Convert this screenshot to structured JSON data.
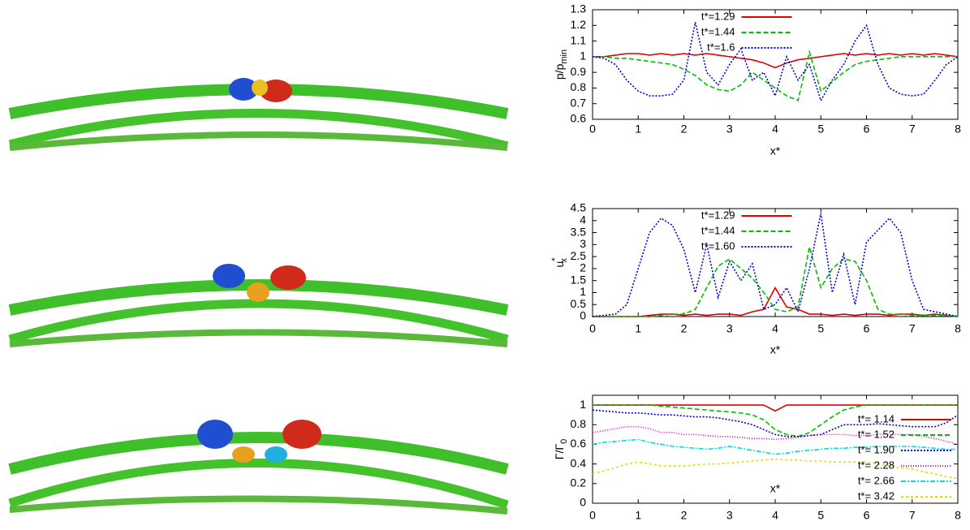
{
  "chart_data": [
    {
      "type": "line",
      "y_label": "p/p",
      "y_label_sub": "min",
      "x_label": "x*",
      "xlim": [
        0,
        8
      ],
      "xticks": [
        0,
        1,
        2,
        3,
        4,
        5,
        6,
        7,
        8
      ],
      "ylim": [
        0.6,
        1.3
      ],
      "yticks": [
        0.6,
        0.7,
        0.8,
        0.9,
        1,
        1.1,
        1.2,
        1.3
      ],
      "legend": "upper center",
      "x": [
        0,
        0.25,
        0.5,
        0.75,
        1,
        1.25,
        1.5,
        1.75,
        2,
        2.25,
        2.5,
        2.75,
        3,
        3.25,
        3.5,
        3.75,
        4,
        4.25,
        4.5,
        4.75,
        5,
        5.25,
        5.5,
        5.75,
        6,
        6.25,
        6.5,
        6.75,
        7,
        7.25,
        7.5,
        7.75,
        8
      ],
      "series": [
        {
          "name": "t*=1.29",
          "color": "#e00000",
          "dash": "solid",
          "values": [
            1,
            1,
            1.01,
            1.02,
            1.02,
            1.01,
            1.02,
            1.01,
            1.02,
            1.01,
            1.02,
            1.01,
            1,
            0.99,
            0.98,
            0.96,
            0.93,
            0.96,
            0.98,
            0.99,
            1,
            1.01,
            1.02,
            1.01,
            1.02,
            1.01,
            1.02,
            1.01,
            1.02,
            1.01,
            1.02,
            1.01,
            1
          ]
        },
        {
          "name": "t*=1.44",
          "color": "#00c000",
          "dash": "dashed",
          "values": [
            1,
            1,
            0.99,
            0.99,
            0.98,
            0.97,
            0.96,
            0.95,
            0.92,
            0.88,
            0.82,
            0.79,
            0.78,
            0.82,
            0.9,
            0.85,
            0.8,
            0.75,
            0.72,
            1.03,
            0.78,
            0.84,
            0.9,
            0.95,
            0.97,
            0.98,
            0.99,
            1,
            1,
            1,
            1,
            1,
            1
          ]
        },
        {
          "name": "t*=1.6",
          "color": "#0000e0",
          "dash": "dotted",
          "values": [
            1,
            0.99,
            0.95,
            0.85,
            0.78,
            0.75,
            0.75,
            0.76,
            0.85,
            1.22,
            0.9,
            0.82,
            0.95,
            1.05,
            0.85,
            0.9,
            0.75,
            1.0,
            0.85,
            0.95,
            0.72,
            0.85,
            0.95,
            1.1,
            1.2,
            0.95,
            0.8,
            0.76,
            0.75,
            0.76,
            0.85,
            0.95,
            1
          ]
        }
      ]
    },
    {
      "type": "line",
      "y_label": "u",
      "y_label_sub": "x",
      "y_label_sup": "*",
      "x_label": "x*",
      "xlim": [
        0,
        8
      ],
      "xticks": [
        0,
        1,
        2,
        3,
        4,
        5,
        6,
        7,
        8
      ],
      "ylim": [
        0,
        4.5
      ],
      "yticks": [
        0,
        0.5,
        1,
        1.5,
        2,
        2.5,
        3,
        3.5,
        4,
        4.5
      ],
      "legend": "upper center",
      "x": [
        0,
        0.25,
        0.5,
        0.75,
        1,
        1.25,
        1.5,
        1.75,
        2,
        2.25,
        2.5,
        2.75,
        3,
        3.25,
        3.5,
        3.75,
        4,
        4.25,
        4.5,
        4.75,
        5,
        5.25,
        5.5,
        5.75,
        6,
        6.25,
        6.5,
        6.75,
        7,
        7.25,
        7.5,
        7.75,
        8
      ],
      "series": [
        {
          "name": "t*=1.29",
          "color": "#e00000",
          "dash": "solid",
          "values": [
            0,
            0,
            0,
            0,
            0,
            0.05,
            0.1,
            0.1,
            0.05,
            0.1,
            0.05,
            0.1,
            0.1,
            0.05,
            0.2,
            0.3,
            1.2,
            0.4,
            0.3,
            0.1,
            0.1,
            0.05,
            0.1,
            0.05,
            0.1,
            0.1,
            0.05,
            0.1,
            0.1,
            0.05,
            0.1,
            0.05,
            0
          ]
        },
        {
          "name": "t*=1.44",
          "color": "#00c000",
          "dash": "dashed",
          "values": [
            0,
            0,
            0,
            0,
            0,
            0,
            0.05,
            0.1,
            0.1,
            0.3,
            1.2,
            2.1,
            2.4,
            2,
            1.6,
            1,
            0.3,
            0.2,
            0.4,
            2.9,
            1.2,
            2,
            2.4,
            2.3,
            1.5,
            0.3,
            0.1,
            0.1,
            0.05,
            0.05,
            0.05,
            0.05,
            0
          ]
        },
        {
          "name": "t*=1.60",
          "color": "#0000e0",
          "dash": "dotted",
          "values": [
            0,
            0.05,
            0.1,
            0.5,
            2,
            3.5,
            4.1,
            3.8,
            2.8,
            1,
            3,
            0.8,
            2.3,
            1.5,
            2.2,
            0.3,
            0.5,
            1.2,
            0.2,
            2,
            4.3,
            1,
            2.6,
            0.5,
            3.1,
            3.6,
            4.1,
            3.5,
            1.5,
            0.3,
            0.2,
            0.1,
            0
          ]
        }
      ]
    },
    {
      "type": "line",
      "y_label": "Γ/Γ",
      "y_label_sub": "0",
      "x_label": "x*",
      "xlim": [
        0,
        8
      ],
      "xticks": [
        0,
        1,
        2,
        3,
        4,
        5,
        6,
        7,
        8
      ],
      "ylim": [
        0,
        1.1
      ],
      "yticks": [
        0,
        0.2,
        0.4,
        0.6,
        0.8,
        1
      ],
      "legend": "lower right",
      "x": [
        0,
        0.25,
        0.5,
        0.75,
        1,
        1.25,
        1.5,
        1.75,
        2,
        2.25,
        2.5,
        2.75,
        3,
        3.25,
        3.5,
        3.75,
        4,
        4.25,
        4.5,
        4.75,
        5,
        5.25,
        5.5,
        5.75,
        6,
        6.25,
        6.5,
        6.75,
        7,
        7.25,
        7.5,
        7.75,
        8
      ],
      "series": [
        {
          "name": "t*= 1.14",
          "color": "#e00000",
          "dash": "solid",
          "values": [
            1,
            1,
            1,
            1,
            1,
            1,
            1,
            1,
            1,
            1,
            1,
            1,
            1,
            1,
            1,
            1,
            0.94,
            1,
            1,
            1,
            1,
            1,
            1,
            1,
            1,
            1,
            1,
            1,
            1,
            1,
            1,
            1,
            1
          ]
        },
        {
          "name": "t*= 1.52",
          "color": "#00c000",
          "dash": "dashed",
          "values": [
            1,
            1,
            1,
            1,
            1,
            1,
            0.99,
            0.98,
            0.97,
            0.96,
            0.95,
            0.94,
            0.93,
            0.92,
            0.9,
            0.85,
            0.75,
            0.7,
            0.68,
            0.72,
            0.8,
            0.88,
            0.95,
            0.98,
            1,
            1,
            1,
            1,
            1,
            1,
            1,
            1,
            1
          ]
        },
        {
          "name": "t*= 1.90",
          "color": "#0000e0",
          "dash": "dotted",
          "values": [
            0.95,
            0.94,
            0.93,
            0.92,
            0.92,
            0.91,
            0.9,
            0.9,
            0.89,
            0.88,
            0.88,
            0.87,
            0.85,
            0.83,
            0.8,
            0.75,
            0.7,
            0.68,
            0.68,
            0.69,
            0.7,
            0.75,
            0.8,
            0.8,
            0.8,
            0.81,
            0.8,
            0.79,
            0.78,
            0.78,
            0.78,
            0.82,
            0.9
          ]
        },
        {
          "name": "t*= 2.28",
          "color": "#e000e0",
          "dash": "dotted2",
          "values": [
            0.72,
            0.74,
            0.76,
            0.78,
            0.78,
            0.76,
            0.72,
            0.72,
            0.7,
            0.7,
            0.69,
            0.68,
            0.68,
            0.67,
            0.66,
            0.66,
            0.65,
            0.66,
            0.67,
            0.69,
            0.7,
            0.7,
            0.7,
            0.69,
            0.69,
            0.7,
            0.7,
            0.7,
            0.7,
            0.68,
            0.66,
            0.63,
            0.6
          ]
        },
        {
          "name": "t*= 2.66",
          "color": "#00e0e0",
          "dash": "dashdot",
          "values": [
            0.6,
            0.62,
            0.63,
            0.64,
            0.65,
            0.62,
            0.6,
            0.58,
            0.57,
            0.56,
            0.55,
            0.56,
            0.58,
            0.56,
            0.54,
            0.52,
            0.5,
            0.51,
            0.53,
            0.54,
            0.55,
            0.56,
            0.56,
            0.57,
            0.57,
            0.58,
            0.58,
            0.58,
            0.58,
            0.57,
            0.56,
            0.55,
            0.55
          ]
        },
        {
          "name": "t*= 3.42",
          "color": "#e0e000",
          "dash": "short",
          "values": [
            0.3,
            0.33,
            0.36,
            0.4,
            0.42,
            0.4,
            0.38,
            0.38,
            0.38,
            0.39,
            0.4,
            0.4,
            0.41,
            0.42,
            0.43,
            0.44,
            0.45,
            0.44,
            0.44,
            0.43,
            0.43,
            0.42,
            0.42,
            0.42,
            0.42,
            0.4,
            0.38,
            0.36,
            0.35,
            0.32,
            0.3,
            0.27,
            0.25
          ]
        }
      ]
    }
  ]
}
